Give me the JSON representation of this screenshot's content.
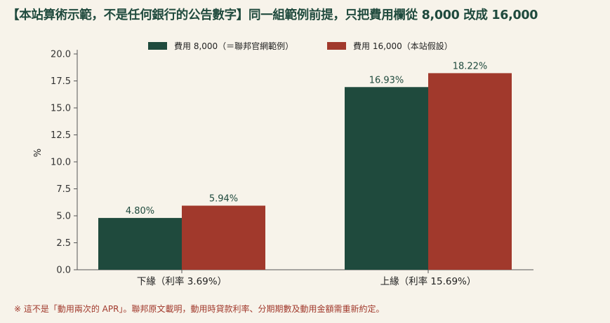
{
  "title": "【本站算術示範，不是任何銀行的公告數字】同一組範例前提，只把費用欄從 8,000 改成 16,000",
  "footnote": "※ 這不是「動用兩次的 APR」。聯邦原文載明，動用時貸款利率、分期期數及動用金額需重新約定。",
  "colors": {
    "series1": "#1f4a3d",
    "series2": "#a1392c",
    "background": "#f7f3ea"
  },
  "chart_data": {
    "type": "bar",
    "ylabel": "%",
    "ylim": [
      0,
      20
    ],
    "yticks": [
      "0.0",
      "2.5",
      "5.0",
      "7.5",
      "10.0",
      "12.5",
      "15.0",
      "17.5",
      "20.0"
    ],
    "categories": [
      "下緣（利率 3.69%）",
      "上緣（利率 15.69%）"
    ],
    "series": [
      {
        "name": "費用 8,000（＝聯邦官網範例）",
        "values": [
          4.8,
          16.93
        ],
        "labels": [
          "4.80%",
          "16.93%"
        ]
      },
      {
        "name": "費用 16,000（本站假設）",
        "values": [
          5.94,
          18.22
        ],
        "labels": [
          "5.94%",
          "18.22%"
        ]
      }
    ],
    "legend": "top-center",
    "grid": false
  }
}
